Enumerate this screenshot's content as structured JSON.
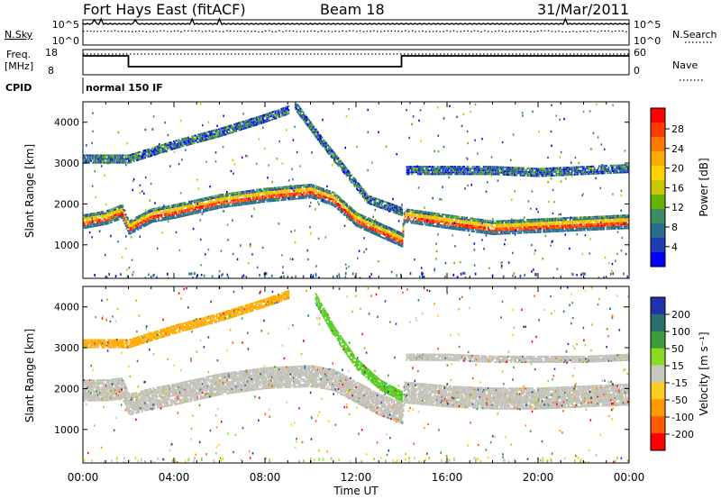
{
  "header": {
    "title": "Fort Hays East (fitACF)",
    "beam": "Beam 18",
    "date": "31/Mar/2011"
  },
  "noise_panel": {
    "left_label": "N.Sky",
    "left_ticks": [
      "10^5",
      "10^0"
    ],
    "right_label": "N.Search",
    "right_ticks": [
      "10^5",
      "10^0"
    ]
  },
  "freq_panel": {
    "left_label_1": "Freq.",
    "left_label_2": "[MHz]",
    "left_ticks": [
      "18",
      "8"
    ],
    "right_label": "Nave",
    "right_ticks": [
      "60",
      "0"
    ]
  },
  "cpid_panel": {
    "label": "CPID",
    "value": "normal 150 IF"
  },
  "power_colorbar": {
    "label": "Power [dB]",
    "ticks": [
      "28",
      "24",
      "20",
      "16",
      "12",
      "8",
      "4"
    ],
    "colors": [
      "#ff0000",
      "#ff3c00",
      "#ff7800",
      "#ffaa00",
      "#ffd200",
      "#c8c800",
      "#64b400",
      "#3c8c64",
      "#2a6e8c",
      "#1e3cb4",
      "#0000ff"
    ]
  },
  "velocity_colorbar": {
    "label": "Velocity [m s⁻¹]",
    "ticks": [
      "200",
      "100",
      "50",
      "15",
      "-15",
      "-50",
      "-100",
      "-200"
    ],
    "colors": [
      "#2233aa",
      "#2a6e6e",
      "#3c9c3c",
      "#88dd22",
      "#c8c8c0",
      "#ffcc22",
      "#ff9900",
      "#ff5a00",
      "#ff0000"
    ]
  },
  "x_axis": {
    "label": "Time UT",
    "ticks": [
      "00:00",
      "04:00",
      "08:00",
      "12:00",
      "16:00",
      "20:00",
      "00:00"
    ]
  },
  "chart_data": [
    {
      "type": "heatmap",
      "title": "Power",
      "ylabel": "Slant Range [km]",
      "xlabel": "Time UT",
      "ylim": [
        180,
        4500
      ],
      "y_ticks": [
        1000,
        2000,
        3000,
        4000
      ],
      "x_range_hours": [
        0,
        24
      ],
      "colorbar_range_db": [
        0,
        32
      ],
      "bands": [
        {
          "name": "main",
          "points": [
            [
              0,
              1550
            ],
            [
              1,
              1650
            ],
            [
              1.7,
              1800
            ],
            [
              2,
              1400
            ],
            [
              3,
              1700
            ],
            [
              4,
              1800
            ],
            [
              6,
              2050
            ],
            [
              8,
              2200
            ],
            [
              9,
              2250
            ],
            [
              10,
              2300
            ],
            [
              11,
              2100
            ],
            [
              12,
              1600
            ],
            [
              13,
              1350
            ],
            [
              14,
              1100
            ],
            [
              14.1,
              1700
            ],
            [
              16,
              1550
            ],
            [
              18,
              1400
            ],
            [
              20,
              1450
            ],
            [
              22,
              1500
            ],
            [
              24,
              1550
            ]
          ],
          "width": 320
        },
        {
          "name": "upper",
          "points": [
            [
              0,
              3100
            ],
            [
              2,
              3100
            ],
            [
              4,
              3450
            ],
            [
              6,
              3750
            ],
            [
              8,
              4100
            ],
            [
              9,
              4300
            ]
          ],
          "width": 220
        },
        {
          "name": "far",
          "points": [
            [
              14.2,
              2800
            ],
            [
              16,
              2800
            ],
            [
              18,
              2800
            ],
            [
              20,
              2750
            ],
            [
              22,
              2800
            ],
            [
              24,
              2850
            ]
          ],
          "width": 180
        },
        {
          "name": "descending",
          "points": [
            [
              9.3,
              4400
            ],
            [
              10.5,
              3500
            ],
            [
              11.5,
              2800
            ],
            [
              12.5,
              2100
            ],
            [
              14,
              1800
            ]
          ],
          "width": 200
        }
      ]
    },
    {
      "type": "heatmap",
      "title": "Velocity",
      "ylabel": "Slant Range [km]",
      "xlabel": "Time UT",
      "ylim": [
        180,
        4500
      ],
      "y_ticks": [
        1000,
        2000,
        3000,
        4000
      ],
      "x_range_hours": [
        0,
        24
      ],
      "colorbar_range_ms": [
        -250,
        250
      ],
      "bands": [
        {
          "name": "ground_scatter",
          "points": [
            [
              0,
              1950
            ],
            [
              1,
              1950
            ],
            [
              1.7,
              2000
            ],
            [
              2,
              1600
            ],
            [
              3,
              1750
            ],
            [
              4,
              1850
            ],
            [
              6,
              2100
            ],
            [
              8,
              2250
            ],
            [
              10,
              2300
            ],
            [
              11,
              2200
            ],
            [
              12,
              1900
            ],
            [
              13,
              1600
            ],
            [
              14,
              1400
            ],
            [
              14.1,
              1900
            ],
            [
              16,
              1800
            ],
            [
              18,
              1750
            ],
            [
              20,
              1750
            ],
            [
              22,
              1800
            ],
            [
              24,
              1850
            ]
          ],
          "width": 520,
          "color": "#c0c0b8"
        },
        {
          "name": "upper",
          "points": [
            [
              0,
              3100
            ],
            [
              2,
              3100
            ],
            [
              4,
              3450
            ],
            [
              6,
              3750
            ],
            [
              8,
              4100
            ],
            [
              9,
              4300
            ]
          ],
          "width": 220,
          "color": "#ffaa00"
        },
        {
          "name": "far",
          "points": [
            [
              14.2,
              2750
            ],
            [
              16,
              2750
            ],
            [
              18,
              2700
            ],
            [
              20,
              2700
            ],
            [
              22,
              2700
            ],
            [
              24,
              2750
            ]
          ],
          "width": 140,
          "color": "#c0c0b8"
        },
        {
          "name": "descending",
          "points": [
            [
              10.2,
              4200
            ],
            [
              11,
              3400
            ],
            [
              12,
              2600
            ],
            [
              13,
              2100
            ],
            [
              14,
              1800
            ]
          ],
          "width": 260,
          "color": "#55cc22"
        }
      ]
    }
  ]
}
